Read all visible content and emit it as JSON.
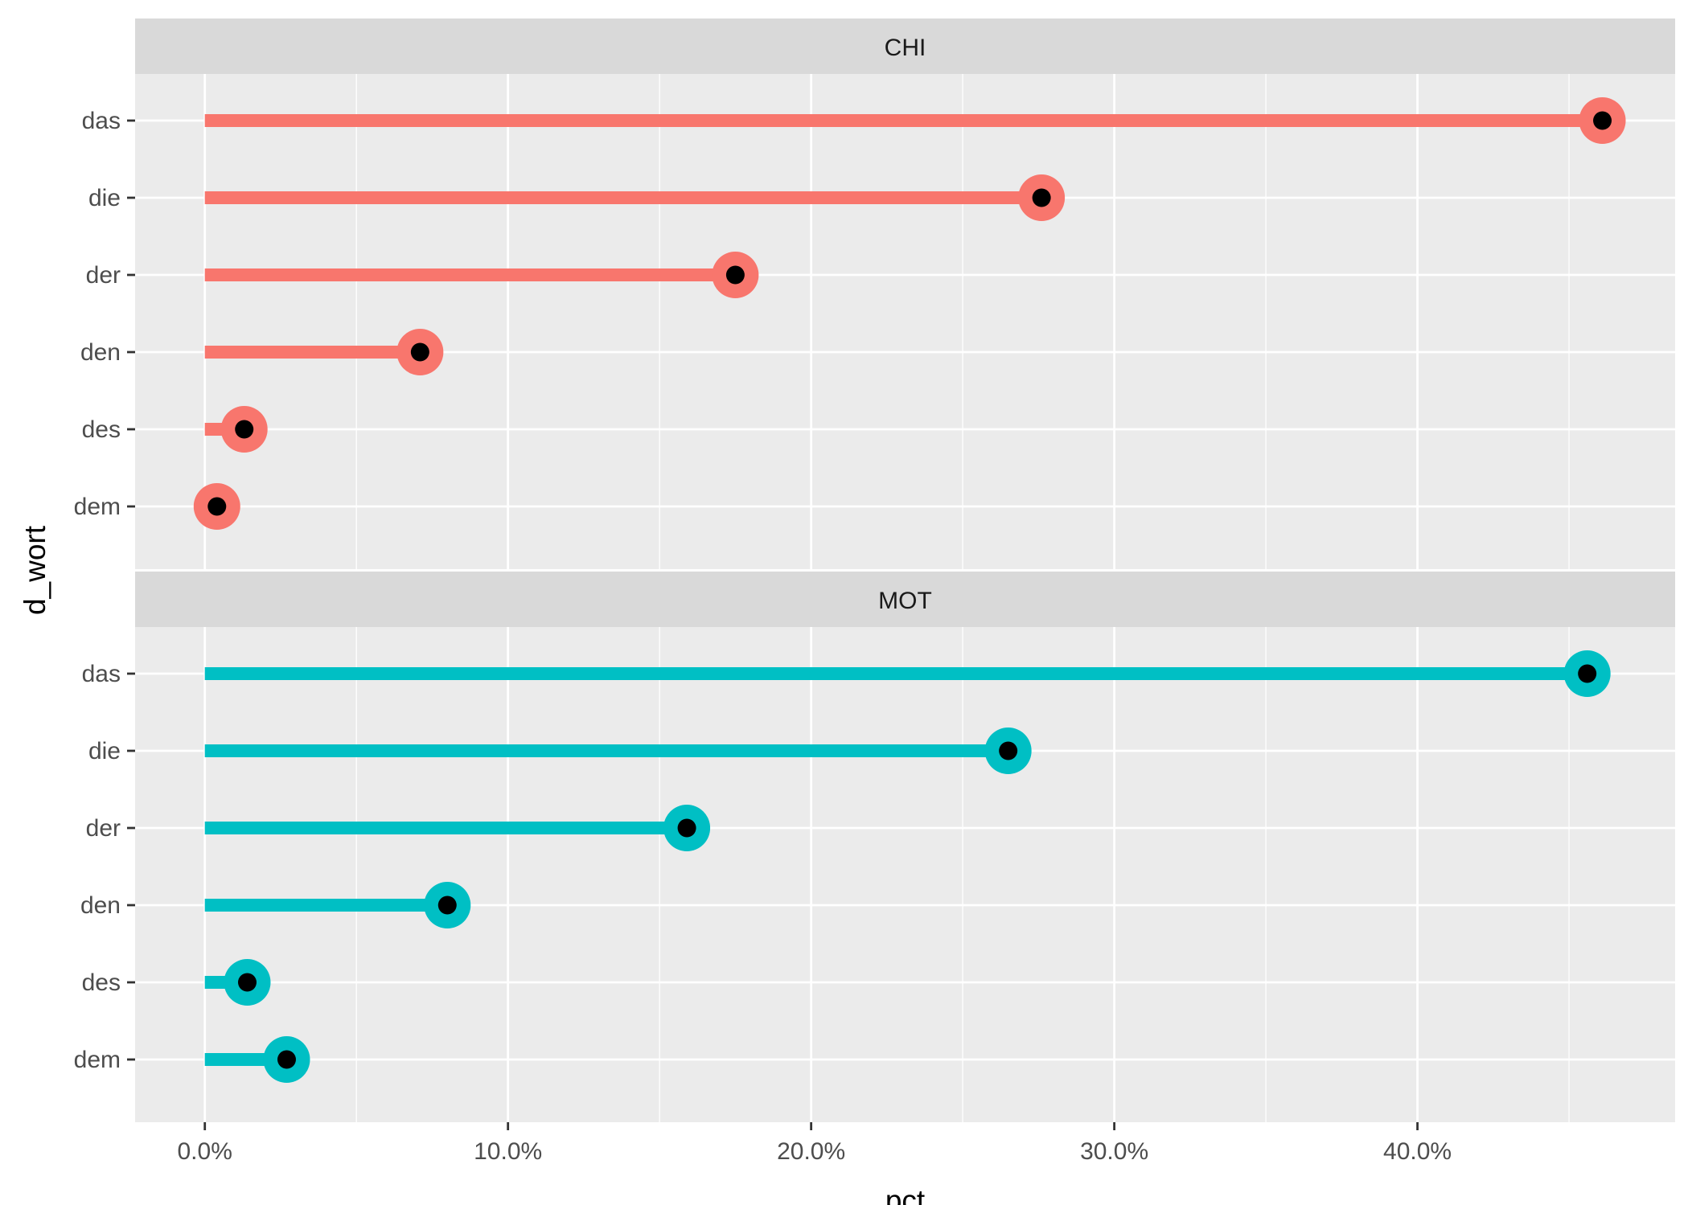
{
  "chart_data": {
    "type": "lollipop",
    "facets": [
      "CHI",
      "MOT"
    ],
    "categories": [
      "das",
      "die",
      "der",
      "den",
      "des",
      "dem"
    ],
    "series": [
      {
        "facet": "CHI",
        "values": [
          46.1,
          27.6,
          17.5,
          7.1,
          1.3,
          0.4
        ]
      },
      {
        "facet": "MOT",
        "values": [
          45.6,
          26.5,
          15.9,
          8.0,
          1.4,
          2.7
        ]
      }
    ],
    "xlim": [
      -2.3,
      48.5
    ],
    "xticks": [
      0,
      10,
      20,
      30,
      40
    ],
    "xtick_labels": [
      "0.0%",
      "10.0%",
      "20.0%",
      "30.0%",
      "40.0%"
    ],
    "xlabel": "pct",
    "ylabel": "d_wort",
    "grid": true,
    "legend": "none"
  },
  "colors": {
    "CHI": "#f8766d",
    "MOT": "#00bfc4",
    "point_center": "#000000",
    "panel_background": "#ebebeb",
    "strip_background": "#d9d9d9",
    "grid_line": "#ffffff"
  }
}
